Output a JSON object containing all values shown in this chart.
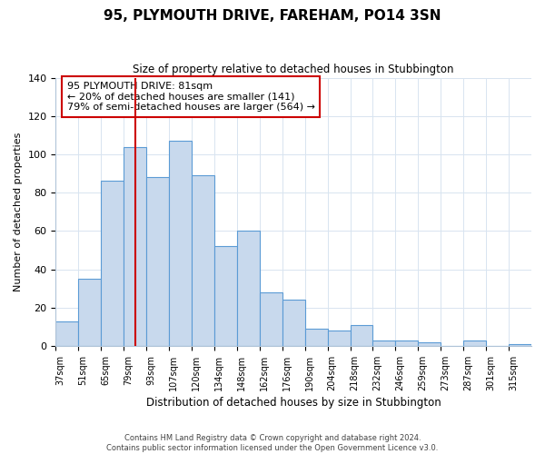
{
  "title": "95, PLYMOUTH DRIVE, FAREHAM, PO14 3SN",
  "subtitle": "Size of property relative to detached houses in Stubbington",
  "xlabel": "Distribution of detached houses by size in Stubbington",
  "ylabel": "Number of detached properties",
  "bar_labels": [
    "37sqm",
    "51sqm",
    "65sqm",
    "79sqm",
    "93sqm",
    "107sqm",
    "120sqm",
    "134sqm",
    "148sqm",
    "162sqm",
    "176sqm",
    "190sqm",
    "204sqm",
    "218sqm",
    "232sqm",
    "246sqm",
    "259sqm",
    "273sqm",
    "287sqm",
    "301sqm",
    "315sqm"
  ],
  "bar_heights": [
    13,
    35,
    86,
    104,
    88,
    107,
    89,
    52,
    60,
    28,
    24,
    9,
    8,
    11,
    3,
    3,
    2,
    0,
    3,
    0,
    1
  ],
  "bar_color": "#c8d9ed",
  "bar_edge_color": "#5b9bd5",
  "vline_color": "#cc0000",
  "annotation_text": "95 PLYMOUTH DRIVE: 81sqm\n← 20% of detached houses are smaller (141)\n79% of semi-detached houses are larger (564) →",
  "annotation_box_edgecolor": "#cc0000",
  "ylim": [
    0,
    140
  ],
  "yticks": [
    0,
    20,
    40,
    60,
    80,
    100,
    120,
    140
  ],
  "footer_line1": "Contains HM Land Registry data © Crown copyright and database right 2024.",
  "footer_line2": "Contains public sector information licensed under the Open Government Licence v3.0.",
  "background_color": "#ffffff",
  "grid_color": "#d8e4f0"
}
